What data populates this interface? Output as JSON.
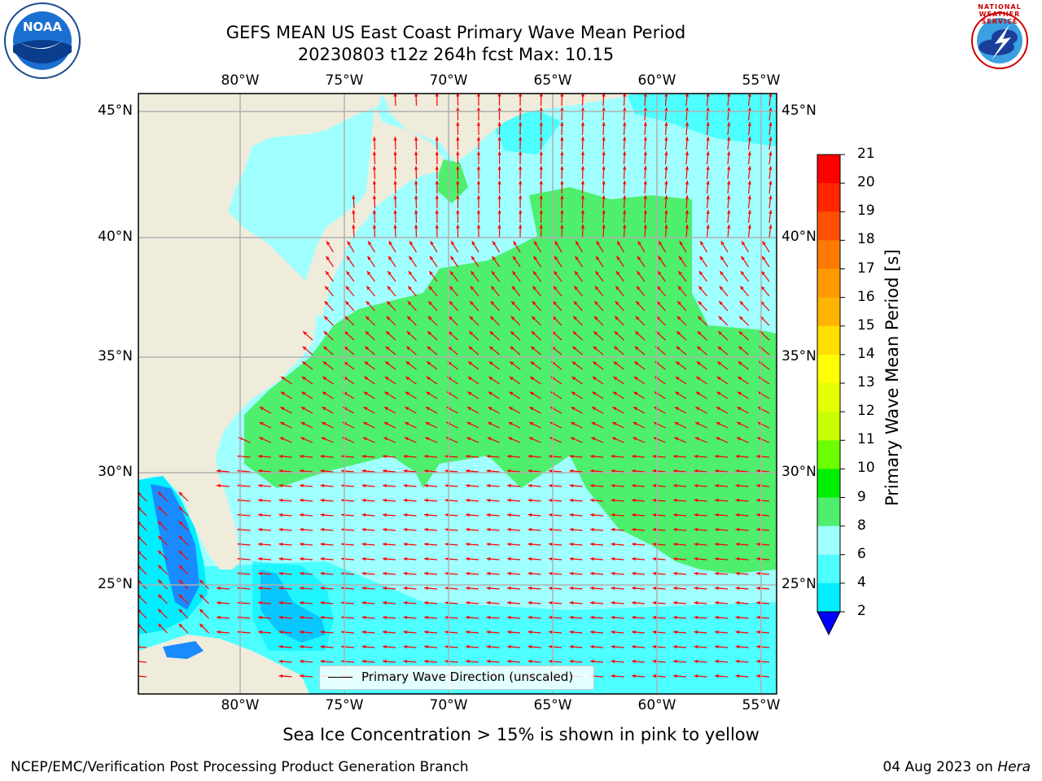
{
  "header": {
    "title_line1": "GEFS MEAN US East Coast Primary Wave Mean Period",
    "title_line2": "20230803 t12z 264h fcst   Max: 10.15"
  },
  "logos": {
    "left_logo_text": "NOAA",
    "right_logo_text": "NATIONAL WEATHER SERVICE"
  },
  "axes": {
    "lon_labels": [
      "80°W",
      "75°W",
      "70°W",
      "65°W",
      "60°W",
      "55°W"
    ],
    "lat_labels": [
      "45°N",
      "40°N",
      "35°N",
      "30°N",
      "25°N"
    ]
  },
  "colorbar": {
    "label": "Primary Wave Mean Period [s]",
    "ticks": [
      "21",
      "20",
      "19",
      "18",
      "17",
      "16",
      "15",
      "14",
      "13",
      "12",
      "11",
      "10",
      "9",
      "8",
      "6",
      "4",
      "2"
    ],
    "colors": [
      "#ff0000",
      "#ff2600",
      "#ff5000",
      "#ff7a00",
      "#ff9900",
      "#ffb400",
      "#ffde00",
      "#ffff00",
      "#e5ff00",
      "#c8ff00",
      "#6bff00",
      "#00ee00",
      "#4def6d",
      "#a0ffff",
      "#4dffff",
      "#00eeff",
      "#1a8bff",
      "#0000ff"
    ]
  },
  "legend": {
    "label": "Primary Wave Direction (unscaled)"
  },
  "notes": {
    "sea_ice": "Sea Ice Concentration > 15% is shown in pink to yellow"
  },
  "footer": {
    "left": "NCEP/EMC/Verification Post Processing Product Generation Branch",
    "date": "04 Aug 2023 on ",
    "machine": "Hera"
  },
  "map_colors": {
    "land": "#efecdc",
    "period_8_9": "#a0ffff",
    "period_9_10": "#4def6d",
    "period_6_8": "#4dffff",
    "period_4_6": "#00eeff",
    "period_2_4": "#1a8bff",
    "arrow": "#ff0000",
    "grid": "#b0b0b0"
  }
}
